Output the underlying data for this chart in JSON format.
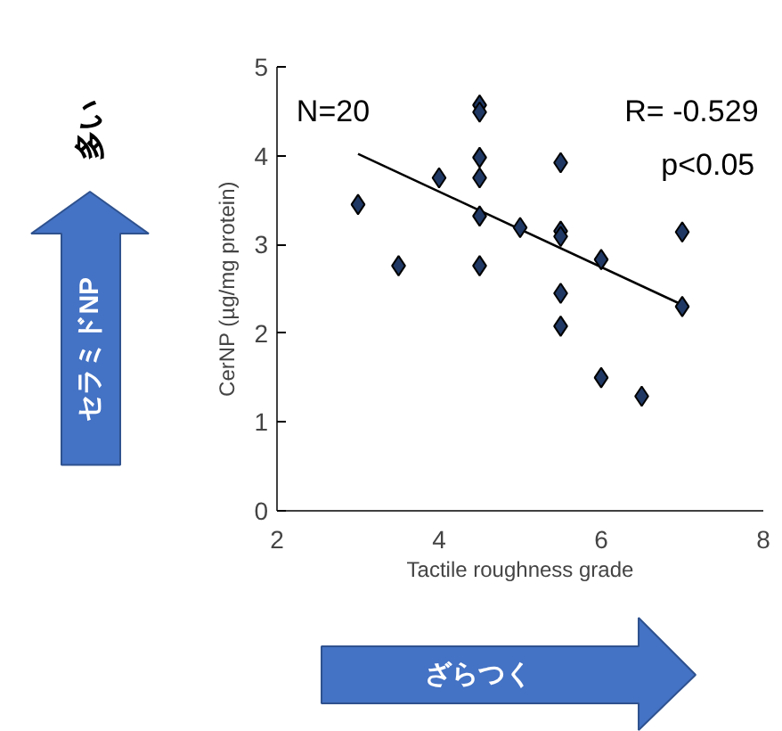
{
  "chart_data": {
    "type": "scatter",
    "xlabel": "Tactile roughness grade",
    "ylabel": "CerNP (µg/mg protein)",
    "xlim": [
      2,
      8
    ],
    "ylim": [
      0,
      5
    ],
    "xticks": [
      2,
      4,
      6,
      8
    ],
    "yticks": [
      0,
      1,
      2,
      3,
      4,
      5
    ],
    "grid": false,
    "annotations": [
      "N=20",
      "R= -0.529",
      "p<0.05",
      "多い",
      "セラミドNP",
      "ざらつく"
    ],
    "series": [
      {
        "marker": "diamond",
        "color": "#1f3864",
        "x": [
          3,
          3.5,
          4,
          4.5,
          4.5,
          4.5,
          4.5,
          4.5,
          4.5,
          5,
          5.5,
          5.5,
          5.5,
          5.5,
          5.5,
          6,
          6,
          6.5,
          7,
          7
        ],
        "values": [
          3.45,
          2.76,
          3.75,
          4.57,
          4.49,
          3.98,
          3.75,
          3.32,
          2.76,
          3.19,
          3.92,
          3.15,
          3.09,
          2.45,
          2.08,
          2.83,
          1.5,
          1.29,
          3.14,
          2.3
        ]
      },
      {
        "type": "line",
        "color": "#000000",
        "x": [
          3,
          7
        ],
        "values": [
          4.02,
          2.32
        ]
      }
    ]
  }
}
